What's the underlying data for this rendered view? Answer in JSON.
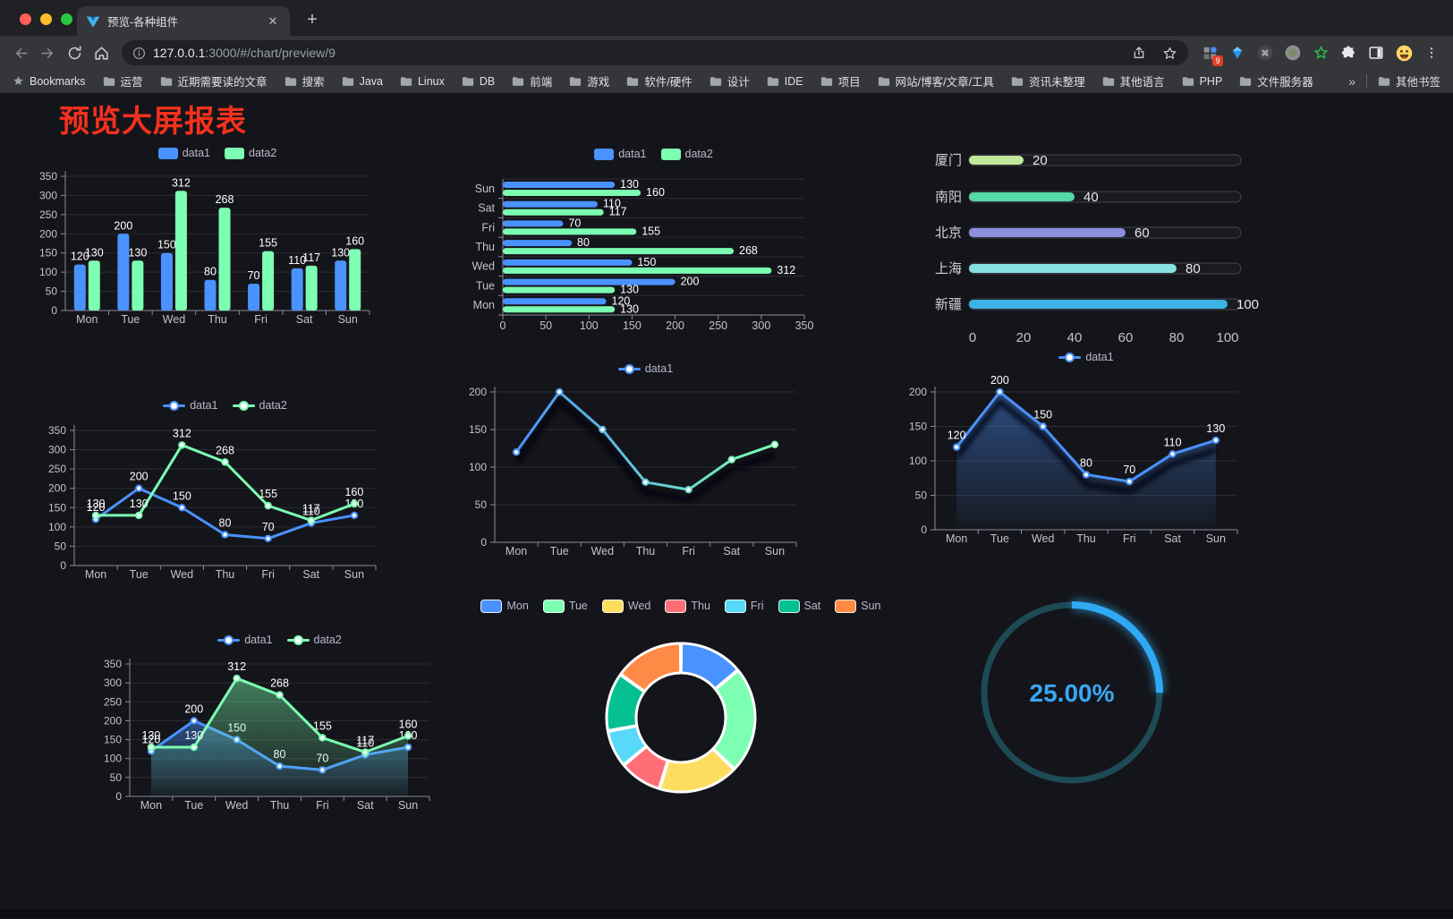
{
  "browser": {
    "tab_title": "预览-各种组件",
    "tab_close_glyph": "✕",
    "new_tab_glyph": "+",
    "url_host": "127.0.0.1",
    "url_path": ":3000/#/chart/preview/9",
    "extension_badge": "9",
    "bookmarks": [
      "Bookmarks",
      "运营",
      "近期需要读的文章",
      "搜索",
      "Java",
      "Linux",
      "DB",
      "前端",
      "游戏",
      "软件/硬件",
      "设计",
      "IDE",
      "项目",
      "网站/博客/文章/工具",
      "资讯未整理",
      "其他语言",
      "PHP",
      "文件服务器"
    ],
    "bookmarks_overflow": "»",
    "other_bookmarks": "其他书签"
  },
  "page": {
    "title": "预览大屏报表",
    "accent_red": "#f5311d",
    "background": "#14151a"
  },
  "chart_data": [
    {
      "id": "bar-vertical",
      "type": "bar",
      "categories": [
        "Mon",
        "Tue",
        "Wed",
        "Thu",
        "Fri",
        "Sat",
        "Sun"
      ],
      "series": [
        {
          "name": "data1",
          "color": "#4992ff",
          "values": [
            120,
            200,
            150,
            80,
            70,
            110,
            130
          ]
        },
        {
          "name": "data2",
          "color": "#7cffb2",
          "values": [
            130,
            130,
            312,
            268,
            155,
            117,
            160
          ]
        }
      ],
      "ylim": [
        0,
        350
      ],
      "ytick": 50,
      "legend_position": "top",
      "grid": true
    },
    {
      "id": "bar-horizontal",
      "type": "bar-horizontal",
      "categories": [
        "Mon",
        "Tue",
        "Wed",
        "Thu",
        "Fri",
        "Sat",
        "Sun"
      ],
      "series": [
        {
          "name": "data1",
          "color": "#4992ff",
          "values": [
            120,
            200,
            150,
            80,
            70,
            110,
            130
          ]
        },
        {
          "name": "data2",
          "color": "#7cffb2",
          "values": [
            130,
            130,
            312,
            268,
            155,
            117,
            160
          ]
        }
      ],
      "xlim": [
        0,
        350
      ],
      "xtick": 50,
      "legend_position": "top",
      "grid": true
    },
    {
      "id": "city-progress",
      "type": "progress-bars",
      "items": [
        {
          "label": "厦门",
          "value": 20,
          "color": "#c4e89b"
        },
        {
          "label": "南阳",
          "value": 40,
          "color": "#56d9a8"
        },
        {
          "label": "北京",
          "value": 60,
          "color": "#8d90e0"
        },
        {
          "label": "上海",
          "value": 80,
          "color": "#87e0e0"
        },
        {
          "label": "新疆",
          "value": 100,
          "color": "#3db2e5"
        }
      ],
      "xlim": [
        0,
        100
      ],
      "ticks": [
        0,
        20,
        40,
        60,
        80,
        100
      ]
    },
    {
      "id": "line-basic",
      "type": "line",
      "categories": [
        "Mon",
        "Tue",
        "Wed",
        "Thu",
        "Fri",
        "Sat",
        "Sun"
      ],
      "series": [
        {
          "name": "data1",
          "color": "#4992ff",
          "values": [
            120,
            200,
            150,
            80,
            70,
            110,
            130
          ],
          "labels": true
        },
        {
          "name": "data2",
          "color": "#7cffb2",
          "values": [
            130,
            130,
            312,
            268,
            155,
            117,
            160
          ],
          "labels": true
        }
      ],
      "ylim": [
        0,
        350
      ],
      "ytick": 50,
      "legend_position": "top",
      "grid": true
    },
    {
      "id": "line-gradient",
      "type": "line",
      "categories": [
        "Mon",
        "Tue",
        "Wed",
        "Thu",
        "Fri",
        "Sat",
        "Sun"
      ],
      "series": [
        {
          "name": "data1",
          "color": "#4992ff",
          "color_end": "#7cffb2",
          "values": [
            120,
            200,
            150,
            80,
            70,
            110,
            130
          ],
          "labels": false,
          "shadow": true
        }
      ],
      "ylim": [
        0,
        200
      ],
      "ytick": 50,
      "legend_position": "top",
      "grid": true
    },
    {
      "id": "area-single",
      "type": "line",
      "categories": [
        "Mon",
        "Tue",
        "Wed",
        "Thu",
        "Fri",
        "Sat",
        "Sun"
      ],
      "series": [
        {
          "name": "data1",
          "color": "#4992ff",
          "values": [
            120,
            200,
            150,
            80,
            70,
            110,
            130
          ],
          "labels": true,
          "area": true,
          "shadow": true
        }
      ],
      "ylim": [
        0,
        200
      ],
      "ytick": 50,
      "legend_position": "top",
      "grid": true
    },
    {
      "id": "area-double",
      "type": "line",
      "categories": [
        "Mon",
        "Tue",
        "Wed",
        "Thu",
        "Fri",
        "Sat",
        "Sun"
      ],
      "series": [
        {
          "name": "data1",
          "color": "#4992ff",
          "values": [
            120,
            200,
            150,
            80,
            70,
            110,
            130
          ],
          "labels": true,
          "area": true
        },
        {
          "name": "data2",
          "color": "#7cffb2",
          "values": [
            130,
            130,
            312,
            268,
            155,
            117,
            160
          ],
          "labels": true,
          "area": true
        }
      ],
      "ylim": [
        0,
        350
      ],
      "ytick": 50,
      "legend_position": "top",
      "grid": true
    },
    {
      "id": "donut",
      "type": "pie",
      "items": [
        {
          "label": "Mon",
          "value": 120,
          "color": "#4992ff"
        },
        {
          "label": "Tue",
          "value": 200,
          "color": "#7cffb2"
        },
        {
          "label": "Wed",
          "value": 150,
          "color": "#fddd60"
        },
        {
          "label": "Thu",
          "value": 80,
          "color": "#ff6e76"
        },
        {
          "label": "Fri",
          "value": 70,
          "color": "#58d9f9"
        },
        {
          "label": "Sat",
          "value": 110,
          "color": "#05c091"
        },
        {
          "label": "Sun",
          "value": 130,
          "color": "#ff8a45"
        }
      ],
      "legend_position": "top"
    },
    {
      "id": "gauge",
      "type": "gauge",
      "value": 25,
      "display": "25.00%",
      "color": "#2fa9f2",
      "track_color": "#1d4a55"
    }
  ]
}
